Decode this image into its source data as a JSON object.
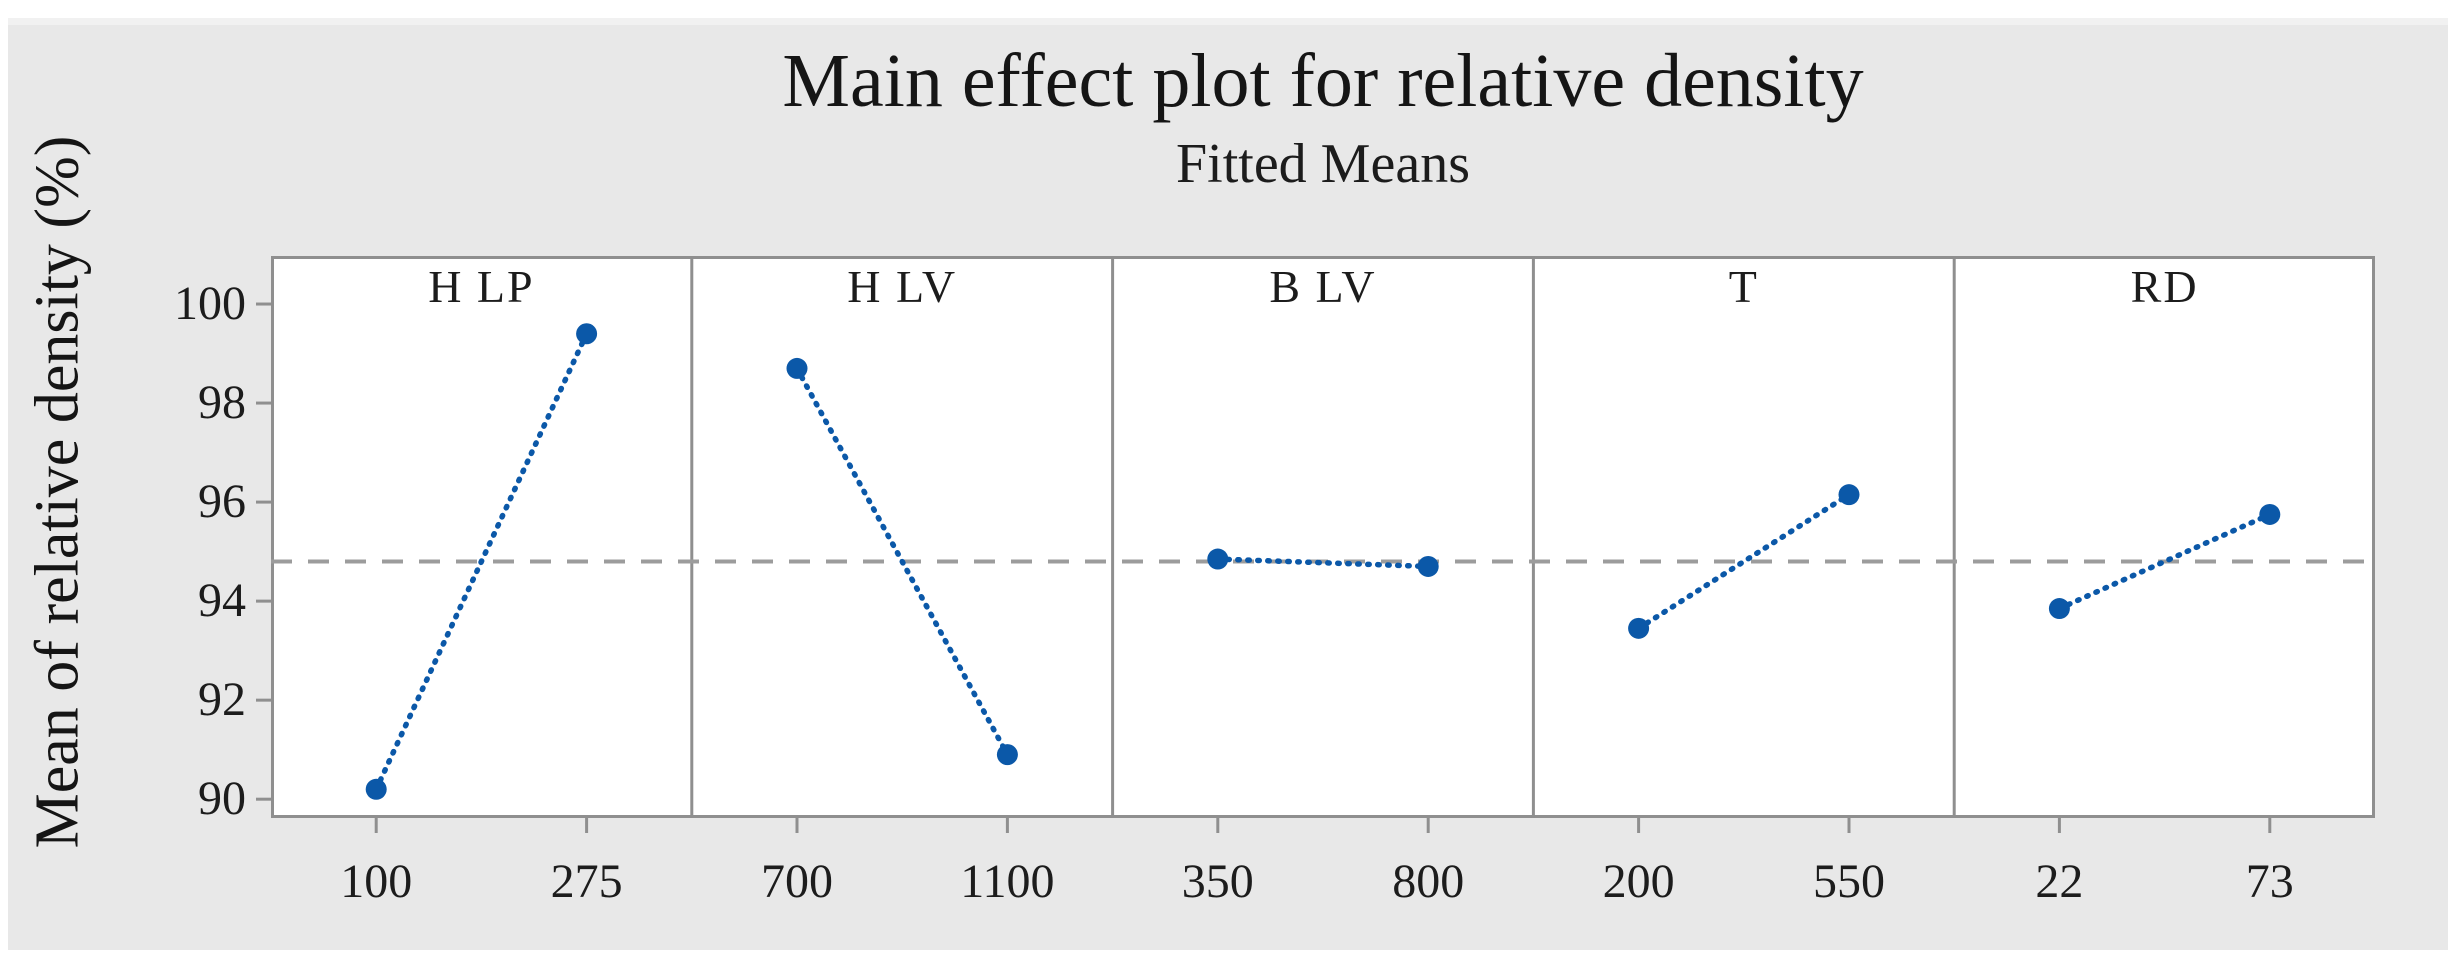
{
  "chart_data": {
    "type": "line",
    "title": "Main effect plot for relative density",
    "subtitle": "Fitted Means",
    "ylabel": "Mean of relative density (%)",
    "ylim": [
      89.62,
      100.97
    ],
    "yticks": [
      100,
      98,
      96,
      94,
      92,
      90
    ],
    "grand_mean": 94.8,
    "grid": false,
    "legend": "none",
    "panels": [
      {
        "factor": "H LP",
        "levels": [
          "100",
          "275"
        ],
        "means": [
          90.2,
          99.4
        ]
      },
      {
        "factor": "H LV",
        "levels": [
          "700",
          "1100"
        ],
        "means": [
          98.7,
          90.9
        ]
      },
      {
        "factor": "B LV",
        "levels": [
          "350",
          "800"
        ],
        "means": [
          94.85,
          94.7
        ]
      },
      {
        "factor": "T",
        "levels": [
          "200",
          "550"
        ],
        "means": [
          93.45,
          96.15
        ]
      },
      {
        "factor": "RD",
        "levels": [
          "22",
          "73"
        ],
        "means": [
          93.85,
          95.75
        ]
      }
    ],
    "colors": {
      "series_line": "#0b58a8",
      "marker": "#0b58a8",
      "mean_line": "#9c9c9c",
      "panel_border": "#8f8f8f",
      "background": "#e8e8e8",
      "panel_fill": "#ffffff",
      "text": "#1c1c1c"
    }
  }
}
